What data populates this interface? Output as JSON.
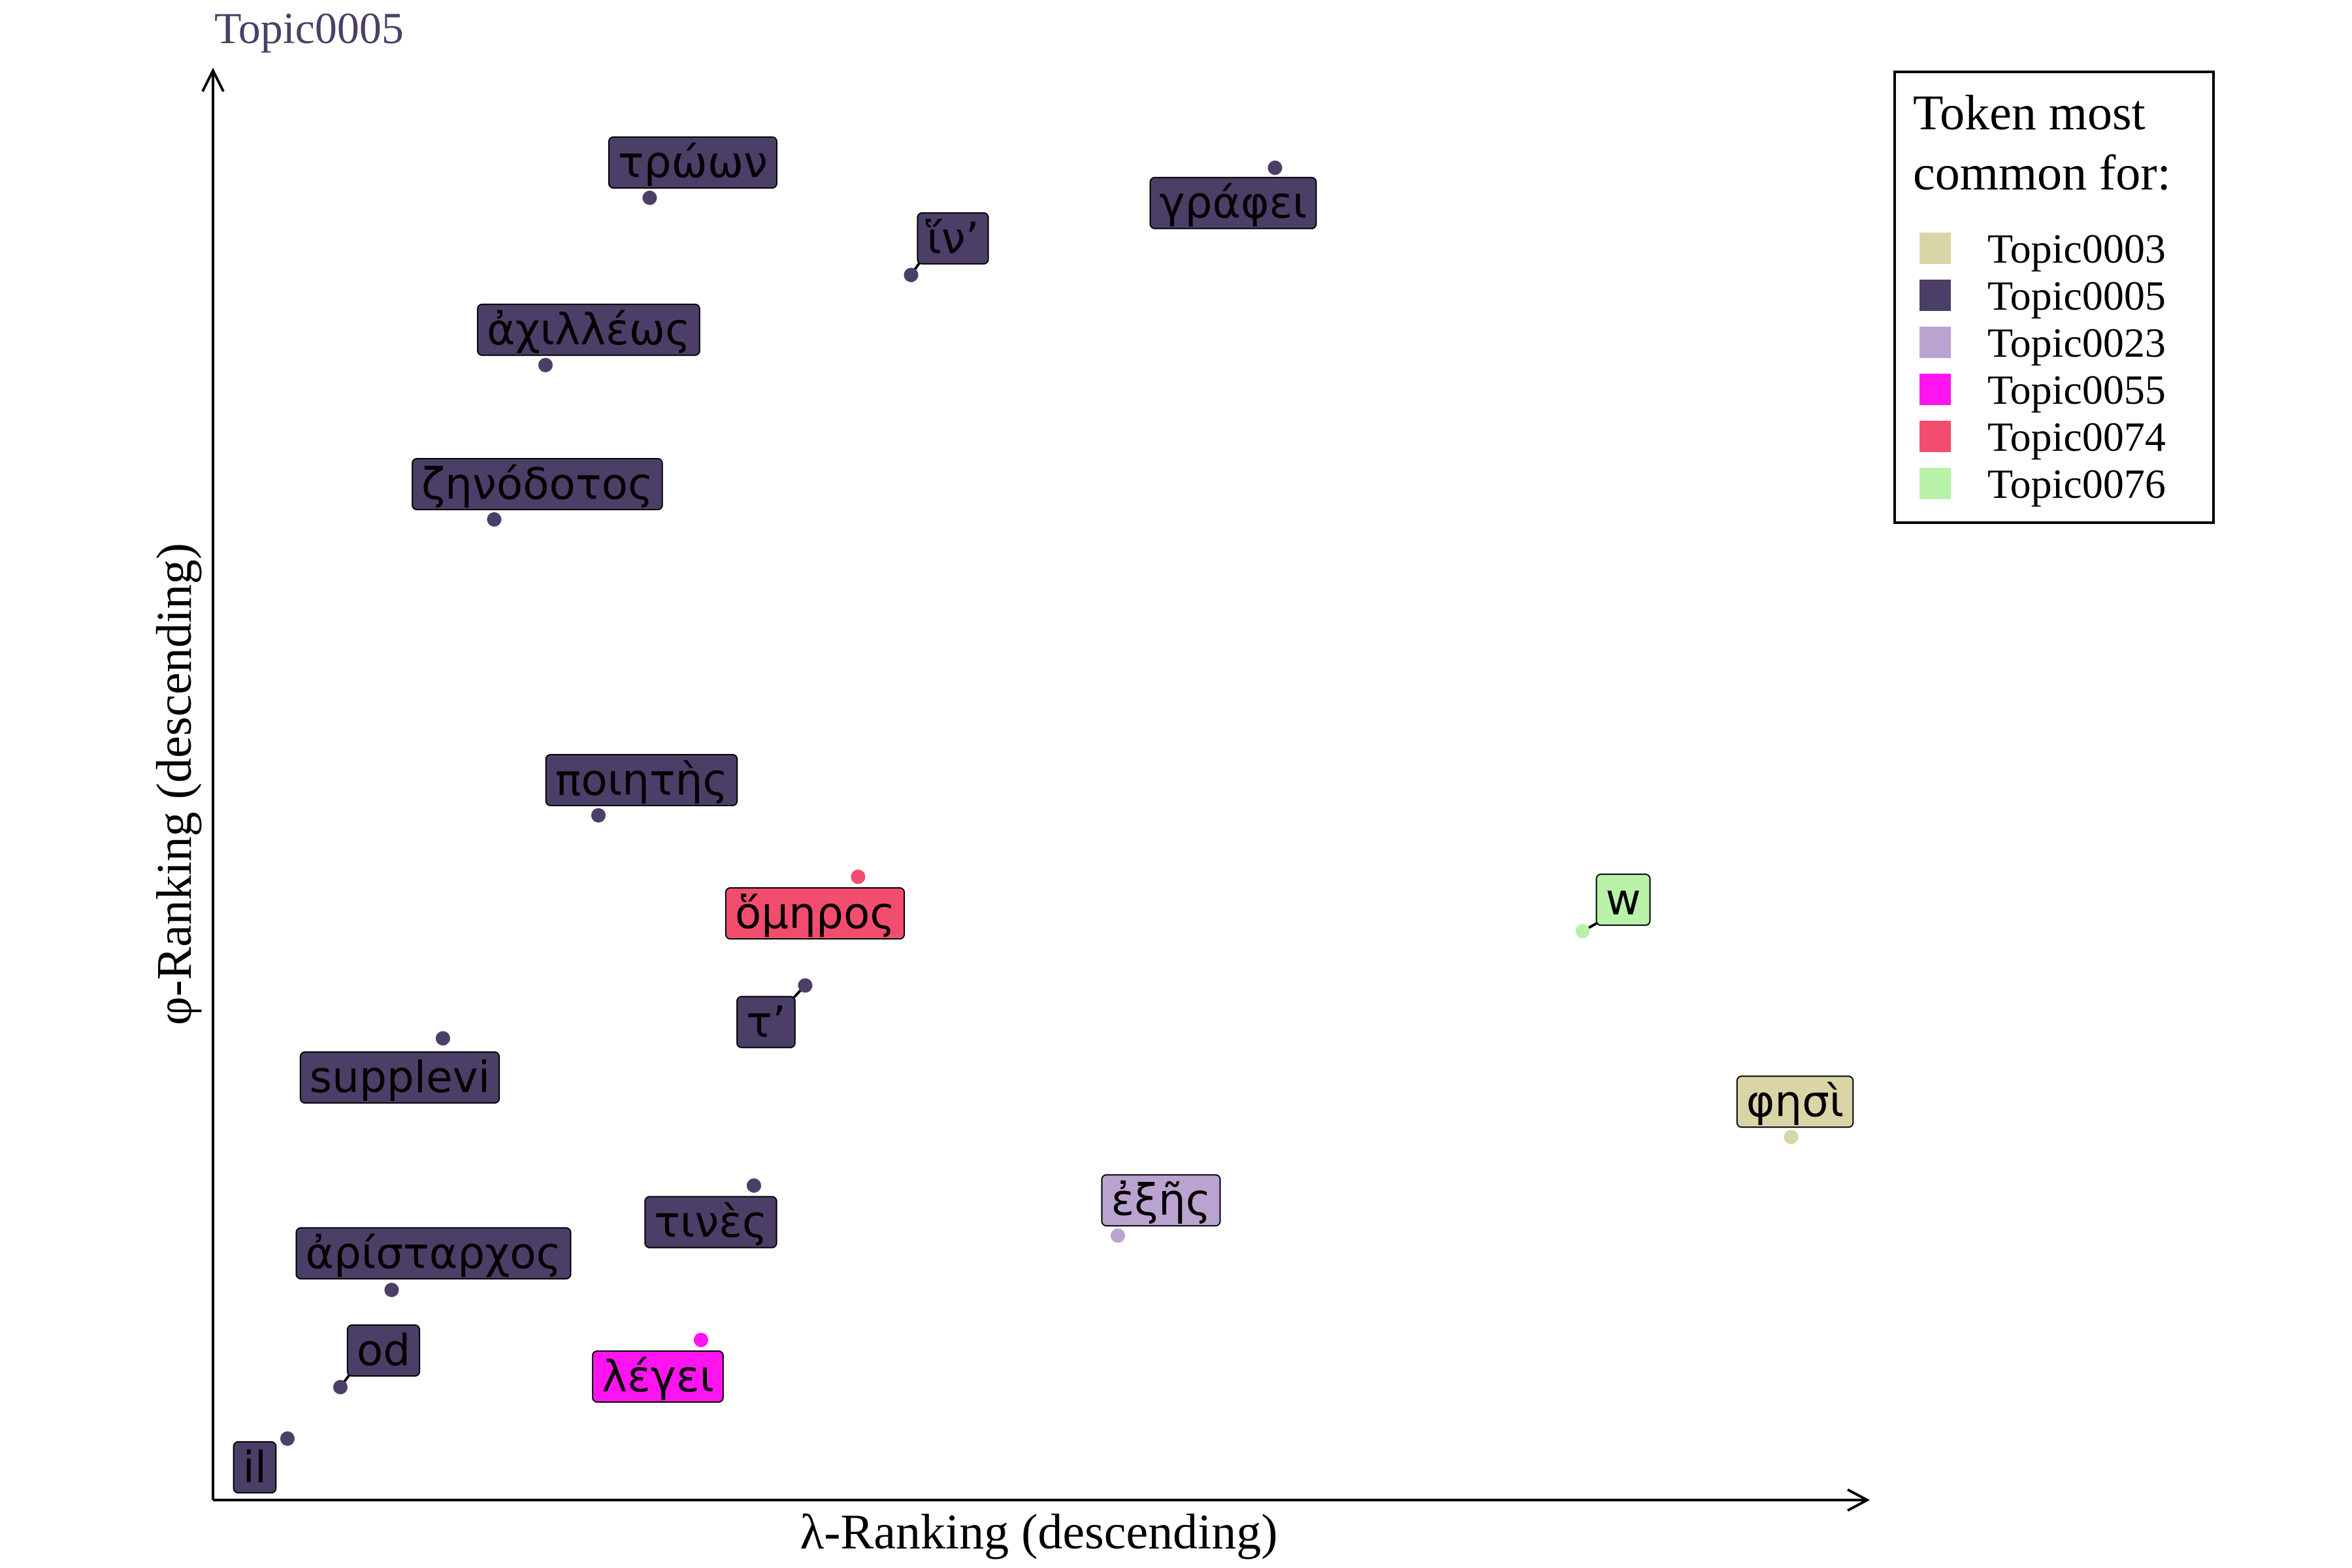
{
  "chart_data": {
    "type": "scatter",
    "title": "Topic0005",
    "xlabel": "λ-Ranking (descending)",
    "ylabel": "φ-Ranking (descending)",
    "xlim": [
      0,
      100
    ],
    "ylim": [
      0,
      100
    ],
    "grid": false,
    "legend": {
      "title_lines": [
        "Token most",
        "common for:"
      ],
      "placement": "top-right",
      "entries": [
        {
          "name": "Topic0003",
          "color": "#d9d5a7"
        },
        {
          "name": "Topic0005",
          "color": "#4b3f68"
        },
        {
          "name": "Topic0023",
          "color": "#bba3d0"
        },
        {
          "name": "Topic0055",
          "color": "#ff14ef"
        },
        {
          "name": "Topic0074",
          "color": "#f24d6f"
        },
        {
          "name": "Topic0076",
          "color": "#b8f2a8"
        }
      ]
    },
    "points": [
      {
        "token": "τρώων",
        "topic": "Topic0005",
        "x": 26.4,
        "y": 91.1
      },
      {
        "token": "ἵν’",
        "topic": "Topic0005",
        "x": 42.2,
        "y": 85.7
      },
      {
        "token": "γράφει",
        "topic": "Topic0005",
        "x": 64.2,
        "y": 93.2
      },
      {
        "token": "ἀχιλλέως",
        "topic": "Topic0005",
        "x": 20.1,
        "y": 79.4
      },
      {
        "token": "ζηνόδοτος",
        "topic": "Topic0005",
        "x": 17.0,
        "y": 68.6
      },
      {
        "token": "ποιητὴς",
        "topic": "Topic0005",
        "x": 23.3,
        "y": 47.9
      },
      {
        "token": "ὅμηρος",
        "topic": "Topic0074",
        "x": 39.0,
        "y": 43.6
      },
      {
        "token": "w",
        "topic": "Topic0076",
        "x": 82.8,
        "y": 39.8
      },
      {
        "token": "τ’",
        "topic": "Topic0005",
        "x": 35.8,
        "y": 36.0
      },
      {
        "token": "supplevi",
        "topic": "Topic0005",
        "x": 13.9,
        "y": 32.3
      },
      {
        "token": "φησὶ",
        "topic": "Topic0003",
        "x": 95.4,
        "y": 25.4
      },
      {
        "token": "τινὲς",
        "topic": "Topic0005",
        "x": 32.7,
        "y": 22.0
      },
      {
        "token": "ἐξῆς",
        "topic": "Topic0023",
        "x": 54.7,
        "y": 18.5
      },
      {
        "token": "ἀρίσταρχος",
        "topic": "Topic0005",
        "x": 10.8,
        "y": 14.7
      },
      {
        "token": "λέγει",
        "topic": "Topic0055",
        "x": 29.5,
        "y": 11.2
      },
      {
        "token": "od",
        "topic": "Topic0005",
        "x": 7.7,
        "y": 7.9
      },
      {
        "token": "il",
        "topic": "Topic0005",
        "x": 4.5,
        "y": 4.3
      }
    ]
  }
}
